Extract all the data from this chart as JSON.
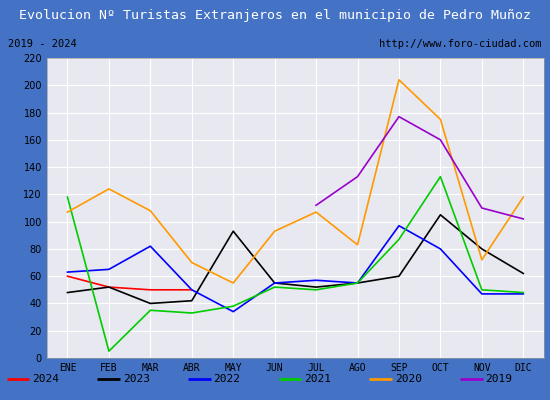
{
  "title": "Evolucion Nº Turistas Extranjeros en el municipio de Pedro Muñoz",
  "subtitle_left": "2019 - 2024",
  "subtitle_right": "http://www.foro-ciudad.com",
  "months": [
    "ENE",
    "FEB",
    "MAR",
    "ABR",
    "MAY",
    "JUN",
    "JUL",
    "AGO",
    "SEP",
    "OCT",
    "NOV",
    "DIC"
  ],
  "series": {
    "2024": [
      60,
      52,
      50,
      50,
      null,
      null,
      null,
      null,
      null,
      null,
      null,
      null
    ],
    "2023": [
      48,
      52,
      40,
      42,
      93,
      55,
      52,
      55,
      60,
      105,
      80,
      62
    ],
    "2022": [
      63,
      65,
      82,
      50,
      34,
      55,
      57,
      55,
      97,
      80,
      47,
      47
    ],
    "2021": [
      118,
      5,
      35,
      33,
      38,
      52,
      50,
      55,
      87,
      133,
      50,
      48
    ],
    "2020": [
      107,
      124,
      108,
      70,
      55,
      93,
      107,
      83,
      204,
      175,
      72,
      118
    ],
    "2019": [
      null,
      null,
      null,
      null,
      null,
      null,
      112,
      133,
      177,
      160,
      110,
      102
    ]
  },
  "colors": {
    "2024": "#ff0000",
    "2023": "#000000",
    "2022": "#0000ff",
    "2021": "#00cc00",
    "2020": "#ff9900",
    "2019": "#9900cc"
  },
  "ylim": [
    0,
    220
  ],
  "yticks": [
    0,
    20,
    40,
    60,
    80,
    100,
    120,
    140,
    160,
    180,
    200,
    220
  ],
  "title_bg": "#4472c4",
  "title_color": "#ffffff",
  "plot_bg": "#e8e8f0",
  "grid_color": "#ffffff",
  "border_color": "#4472c4",
  "title_fontsize": 9.5,
  "subtitle_fontsize": 7.5,
  "axis_fontsize": 7,
  "legend_fontsize": 8
}
